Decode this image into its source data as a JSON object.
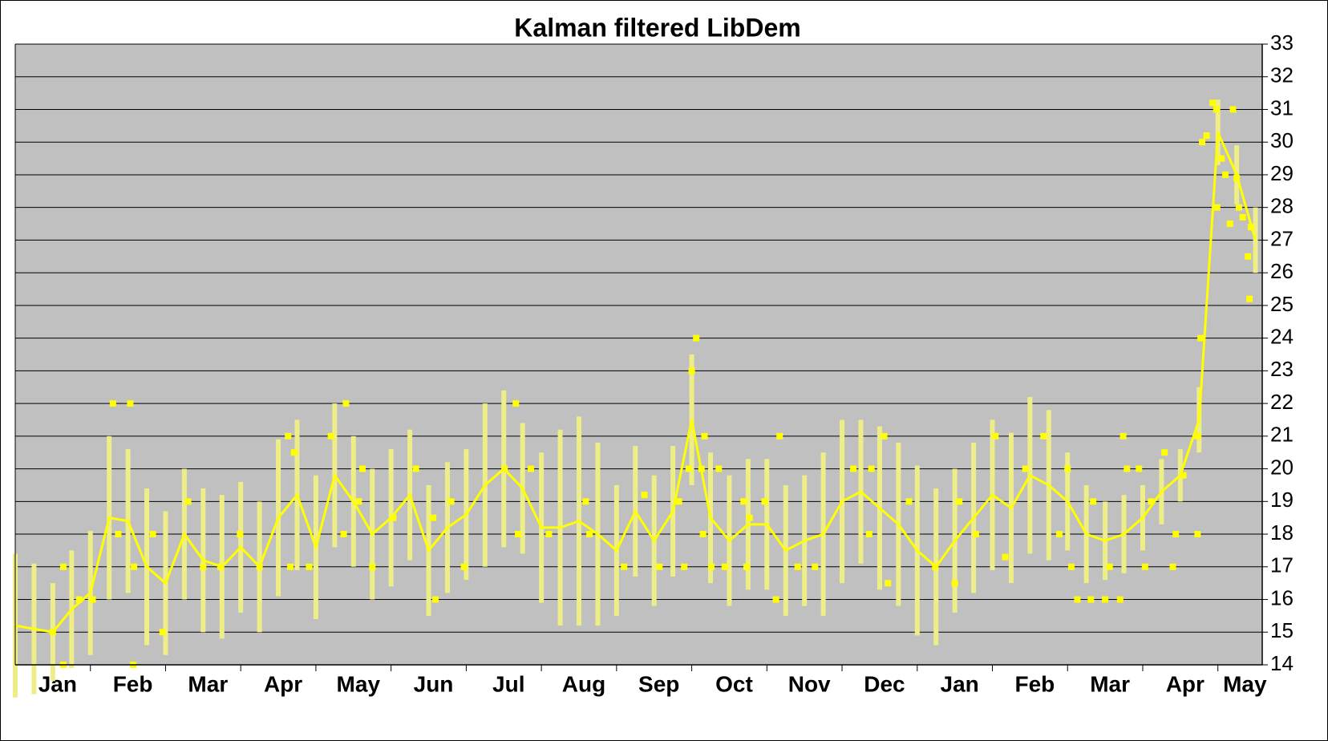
{
  "chart_data": {
    "type": "line",
    "title": "Kalman filtered LibDem",
    "xlim": [
      0,
      16.59
    ],
    "xticks": [
      {
        "value": 0,
        "label": "Jan"
      },
      {
        "value": 1,
        "label": "Feb"
      },
      {
        "value": 2,
        "label": "Mar"
      },
      {
        "value": 3,
        "label": "Apr"
      },
      {
        "value": 4,
        "label": "May"
      },
      {
        "value": 5,
        "label": "Jun"
      },
      {
        "value": 6,
        "label": "Jul"
      },
      {
        "value": 7,
        "label": "Aug"
      },
      {
        "value": 8,
        "label": "Sep"
      },
      {
        "value": 9,
        "label": "Oct"
      },
      {
        "value": 10,
        "label": "Nov"
      },
      {
        "value": 11,
        "label": "Dec"
      },
      {
        "value": 12,
        "label": "Jan"
      },
      {
        "value": 13,
        "label": "Feb"
      },
      {
        "value": 14,
        "label": "Mar"
      },
      {
        "value": 15,
        "label": "Apr"
      },
      {
        "value": 16,
        "label": "May"
      }
    ],
    "ylim": [
      14,
      33
    ],
    "yticks": [
      14,
      15,
      16,
      17,
      18,
      19,
      20,
      21,
      22,
      23,
      24,
      25,
      26,
      27,
      28,
      29,
      30,
      31,
      32,
      33
    ],
    "grid": true,
    "y_axis_side": "right",
    "plot_background": "#c0c0c0",
    "series": [
      {
        "type": "line",
        "color": "#ffff00",
        "error_color": "#eeee88",
        "x": [
          0,
          0.25,
          0.5,
          0.75,
          1,
          1.25,
          1.5,
          1.75,
          2,
          2.25,
          2.5,
          2.75,
          3,
          3.25,
          3.5,
          3.75,
          4,
          4.25,
          4.5,
          4.75,
          5,
          5.25,
          5.5,
          5.75,
          6,
          6.25,
          6.5,
          6.75,
          7,
          7.25,
          7.5,
          7.75,
          8,
          8.25,
          8.5,
          8.75,
          9,
          9.25,
          9.5,
          9.75,
          10,
          10.25,
          10.5,
          10.75,
          11,
          11.25,
          11.5,
          11.75,
          12,
          12.25,
          12.5,
          12.75,
          13,
          13.25,
          13.5,
          13.75,
          14,
          14.25,
          14.5,
          14.75,
          15,
          15.25,
          15.5,
          15.75,
          16,
          16.25,
          16.5
        ],
        "values": [
          15.2,
          15.1,
          15.0,
          15.7,
          16.2,
          18.5,
          18.4,
          17.0,
          16.5,
          18.0,
          17.2,
          17.0,
          17.6,
          17.0,
          18.5,
          19.2,
          17.6,
          19.8,
          19.0,
          18.0,
          18.5,
          19.2,
          17.5,
          18.2,
          18.6,
          19.5,
          20.0,
          19.4,
          18.2,
          18.2,
          18.4,
          18.0,
          17.5,
          18.7,
          17.8,
          18.7,
          21.5,
          18.5,
          17.8,
          18.3,
          18.3,
          17.5,
          17.8,
          18.0,
          19.0,
          19.3,
          18.8,
          18.3,
          17.5,
          17.0,
          17.8,
          18.5,
          19.2,
          18.8,
          19.8,
          19.5,
          19.0,
          18.0,
          17.8,
          18.0,
          18.5,
          19.3,
          19.8,
          21.5,
          30.3,
          29.0,
          27.0
        ],
        "errors": [
          2.2,
          2.0,
          1.5,
          1.8,
          1.9,
          2.5,
          2.2,
          2.4,
          2.2,
          2.0,
          2.2,
          2.2,
          2.0,
          2.0,
          2.4,
          2.3,
          2.2,
          2.2,
          2.0,
          2.0,
          2.1,
          2.0,
          2.0,
          2.0,
          2.0,
          2.5,
          2.4,
          2.0,
          2.3,
          3.0,
          3.2,
          2.8,
          2.0,
          2.0,
          2.0,
          2.0,
          2.0,
          2.0,
          2.0,
          2.0,
          2.0,
          2.0,
          2.0,
          2.5,
          2.5,
          2.2,
          2.5,
          2.5,
          2.6,
          2.4,
          2.2,
          2.3,
          2.3,
          2.3,
          2.4,
          2.3,
          1.5,
          1.5,
          1.2,
          1.2,
          1.0,
          1.0,
          0.8,
          1.0,
          1.0,
          0.9,
          1.0
        ]
      },
      {
        "type": "scatter",
        "color": "#ffff00",
        "x": [
          0.5,
          0.64,
          0.64,
          0.85,
          1.03,
          1.3,
          1.53,
          1.37,
          1.57,
          1.58,
          1.83,
          1.96,
          2.3,
          2.5,
          2.73,
          2.99,
          3.25,
          3.63,
          3.71,
          3.66,
          3.91,
          4.2,
          4.37,
          4.4,
          4.62,
          4.57,
          4.75,
          5.03,
          5.33,
          5.56,
          5.59,
          5.8,
          5.97,
          6.51,
          6.66,
          6.69,
          6.86,
          7.1,
          7.59,
          7.64,
          8.1,
          8.37,
          8.57,
          8.83,
          8.9,
          8.96,
          9.0,
          9.06,
          9.13,
          9.17,
          9.15,
          9.26,
          9.36,
          9.44,
          9.69,
          9.73,
          9.77,
          9.97,
          10.12,
          10.17,
          10.41,
          10.64,
          11.15,
          11.36,
          11.39,
          11.56,
          11.61,
          11.89,
          12.24,
          12.5,
          12.56,
          12.78,
          13.04,
          13.17,
          13.44,
          13.68,
          13.89,
          14.0,
          14.05,
          14.13,
          14.31,
          14.34,
          14.5,
          14.56,
          14.7,
          14.74,
          14.79,
          14.95,
          15.03,
          15.11,
          15.29,
          15.4,
          15.44,
          15.54,
          15.73,
          15.73,
          15.77,
          15.79,
          15.85,
          15.93,
          15.98,
          15.99,
          16.05,
          16.1,
          16.16,
          16.2,
          16.25,
          16.28,
          16.33,
          16.4,
          16.42,
          16.44
        ],
        "values": [
          15,
          17,
          14,
          16,
          16,
          22,
          22,
          18,
          14,
          17,
          18,
          15,
          19,
          17,
          17,
          18,
          17,
          21,
          20.5,
          17,
          17,
          21,
          18,
          22,
          20,
          19,
          17,
          18.5,
          20,
          18.5,
          16,
          19,
          17,
          20,
          22,
          18,
          20,
          18,
          19,
          18,
          17,
          19.2,
          17,
          19,
          17,
          20,
          23,
          24,
          20,
          21,
          18,
          17,
          20,
          17,
          19,
          17,
          18.5,
          19,
          16,
          21,
          17,
          17,
          20,
          18,
          20,
          21,
          16.5,
          19,
          17,
          16.5,
          19,
          18,
          21,
          17.3,
          20,
          21,
          18,
          20,
          17,
          16,
          16,
          19,
          16,
          17,
          16,
          21,
          20,
          20,
          17,
          19,
          20.5,
          17,
          18,
          19.8,
          21,
          18,
          24,
          30,
          30.2,
          31.2,
          31,
          28,
          29.5,
          29,
          27.5,
          31,
          28.9,
          28,
          27.7,
          26.5,
          25.2,
          27.4
        ]
      }
    ]
  }
}
